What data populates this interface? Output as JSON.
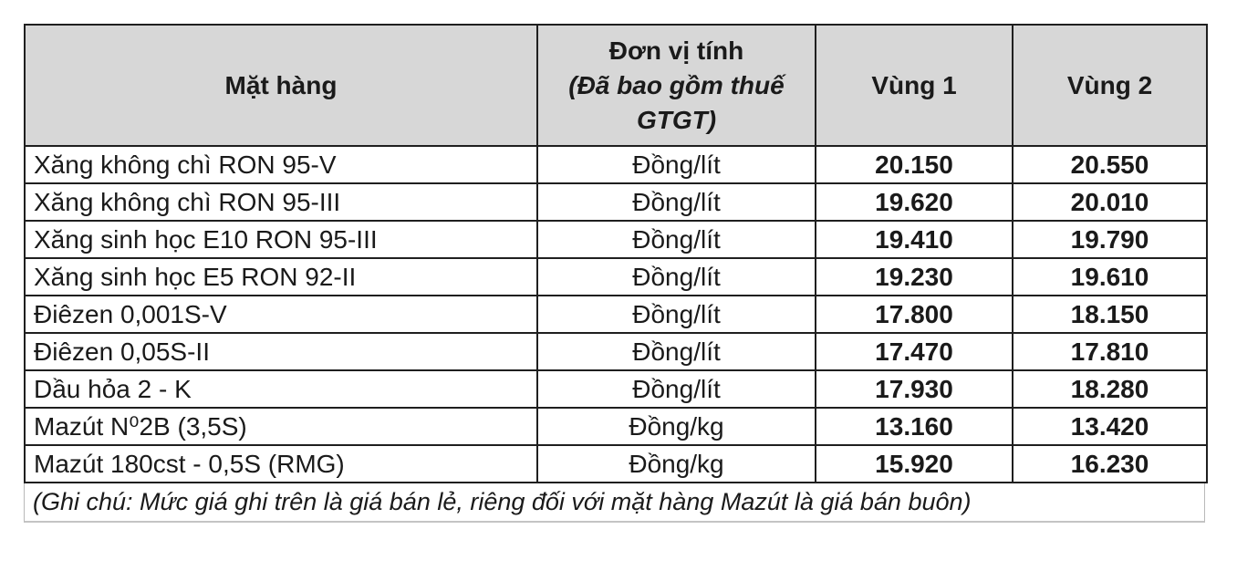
{
  "table": {
    "headers": {
      "product": "Mặt hàng",
      "unit_line1": "Đơn vị tính",
      "unit_line2": "(Đã bao gồm thuế",
      "unit_line3": "GTGT)",
      "region1": "Vùng 1",
      "region2": "Vùng 2"
    },
    "rows": [
      {
        "name": "Xăng không chì RON 95-V",
        "unit": "Đồng/lít",
        "region1": "20.150",
        "region2": "20.550"
      },
      {
        "name": "Xăng không chì RON 95-III",
        "unit": "Đồng/lít",
        "region1": "19.620",
        "region2": "20.010"
      },
      {
        "name": "Xăng sinh học E10 RON 95-III",
        "unit": "Đồng/lít",
        "region1": "19.410",
        "region2": "19.790"
      },
      {
        "name": "Xăng sinh học E5 RON 92-II",
        "unit": "Đồng/lít",
        "region1": "19.230",
        "region2": "19.610"
      },
      {
        "name": "Điêzen 0,001S-V",
        "unit": "Đồng/lít",
        "region1": "17.800",
        "region2": "18.150"
      },
      {
        "name": "Điêzen 0,05S-II",
        "unit": "Đồng/lít",
        "region1": "17.470",
        "region2": "17.810"
      },
      {
        "name": "Dầu hỏa 2 - K",
        "unit": "Đồng/lít",
        "region1": "17.930",
        "region2": "18.280"
      },
      {
        "name": "Mazút N⁰2B (3,5S)",
        "unit": "Đồng/kg",
        "region1": "13.160",
        "region2": "13.420"
      },
      {
        "name": "Mazút 180cst - 0,5S (RMG)",
        "unit": "Đồng/kg",
        "region1": "15.920",
        "region2": "16.230"
      }
    ],
    "note": "(Ghi chú: Mức giá ghi trên là giá bán lẻ, riêng đối với mặt hàng Mazút là giá bán buôn)"
  },
  "colors": {
    "header_bg": "#d7d7d7",
    "border_dark": "#1f1f1f",
    "border_light": "#b9b9b9",
    "text": "#1a1a1a"
  }
}
